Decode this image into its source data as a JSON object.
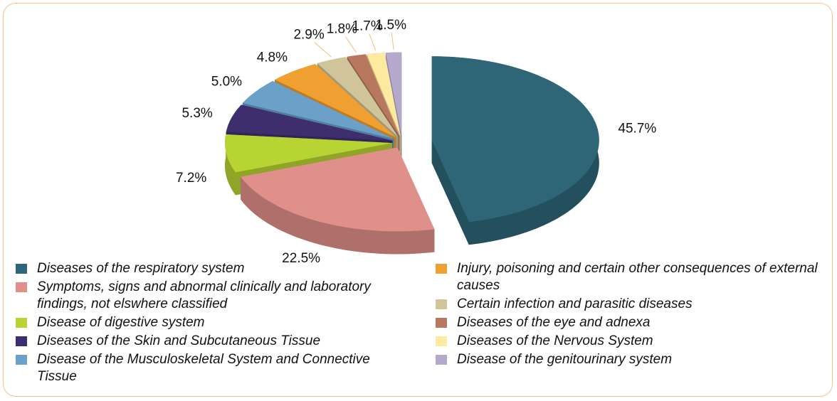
{
  "chart_data": {
    "type": "pie3d",
    "categories": [
      "Diseases of the respiratory system",
      "Symptoms, signs and abnormal clinically and laboratory findings, not elswhere classified",
      "Disease of digestive system",
      "Diseases of the Skin and Subcutaneous Tissue",
      "Disease of the Musculoskeletal System and Connective Tissue",
      "Injury, poisoning and certain other consequences of external causes",
      "Certain infection and parasitic diseases",
      "Diseases of the eye and adnexa",
      "Diseases of the Nervous System",
      "Disease of the genitourinary system"
    ],
    "values": [
      45.7,
      22.5,
      7.2,
      5.3,
      5.0,
      4.8,
      2.9,
      1.8,
      1.7,
      1.5
    ],
    "value_labels": [
      "45.7%",
      "22.5%",
      "7.2%",
      "5.3%",
      "5.0%",
      "4.8%",
      "2.9%",
      "1.8%",
      "1.7%",
      "1.5%"
    ],
    "colors": [
      "#2e6677",
      "#e0908a",
      "#b8d432",
      "#3f2e6e",
      "#6ba0c8",
      "#f0a030",
      "#cfc49a",
      "#b87860",
      "#fde9a0",
      "#b4a8cc"
    ],
    "legend": "bottom"
  }
}
